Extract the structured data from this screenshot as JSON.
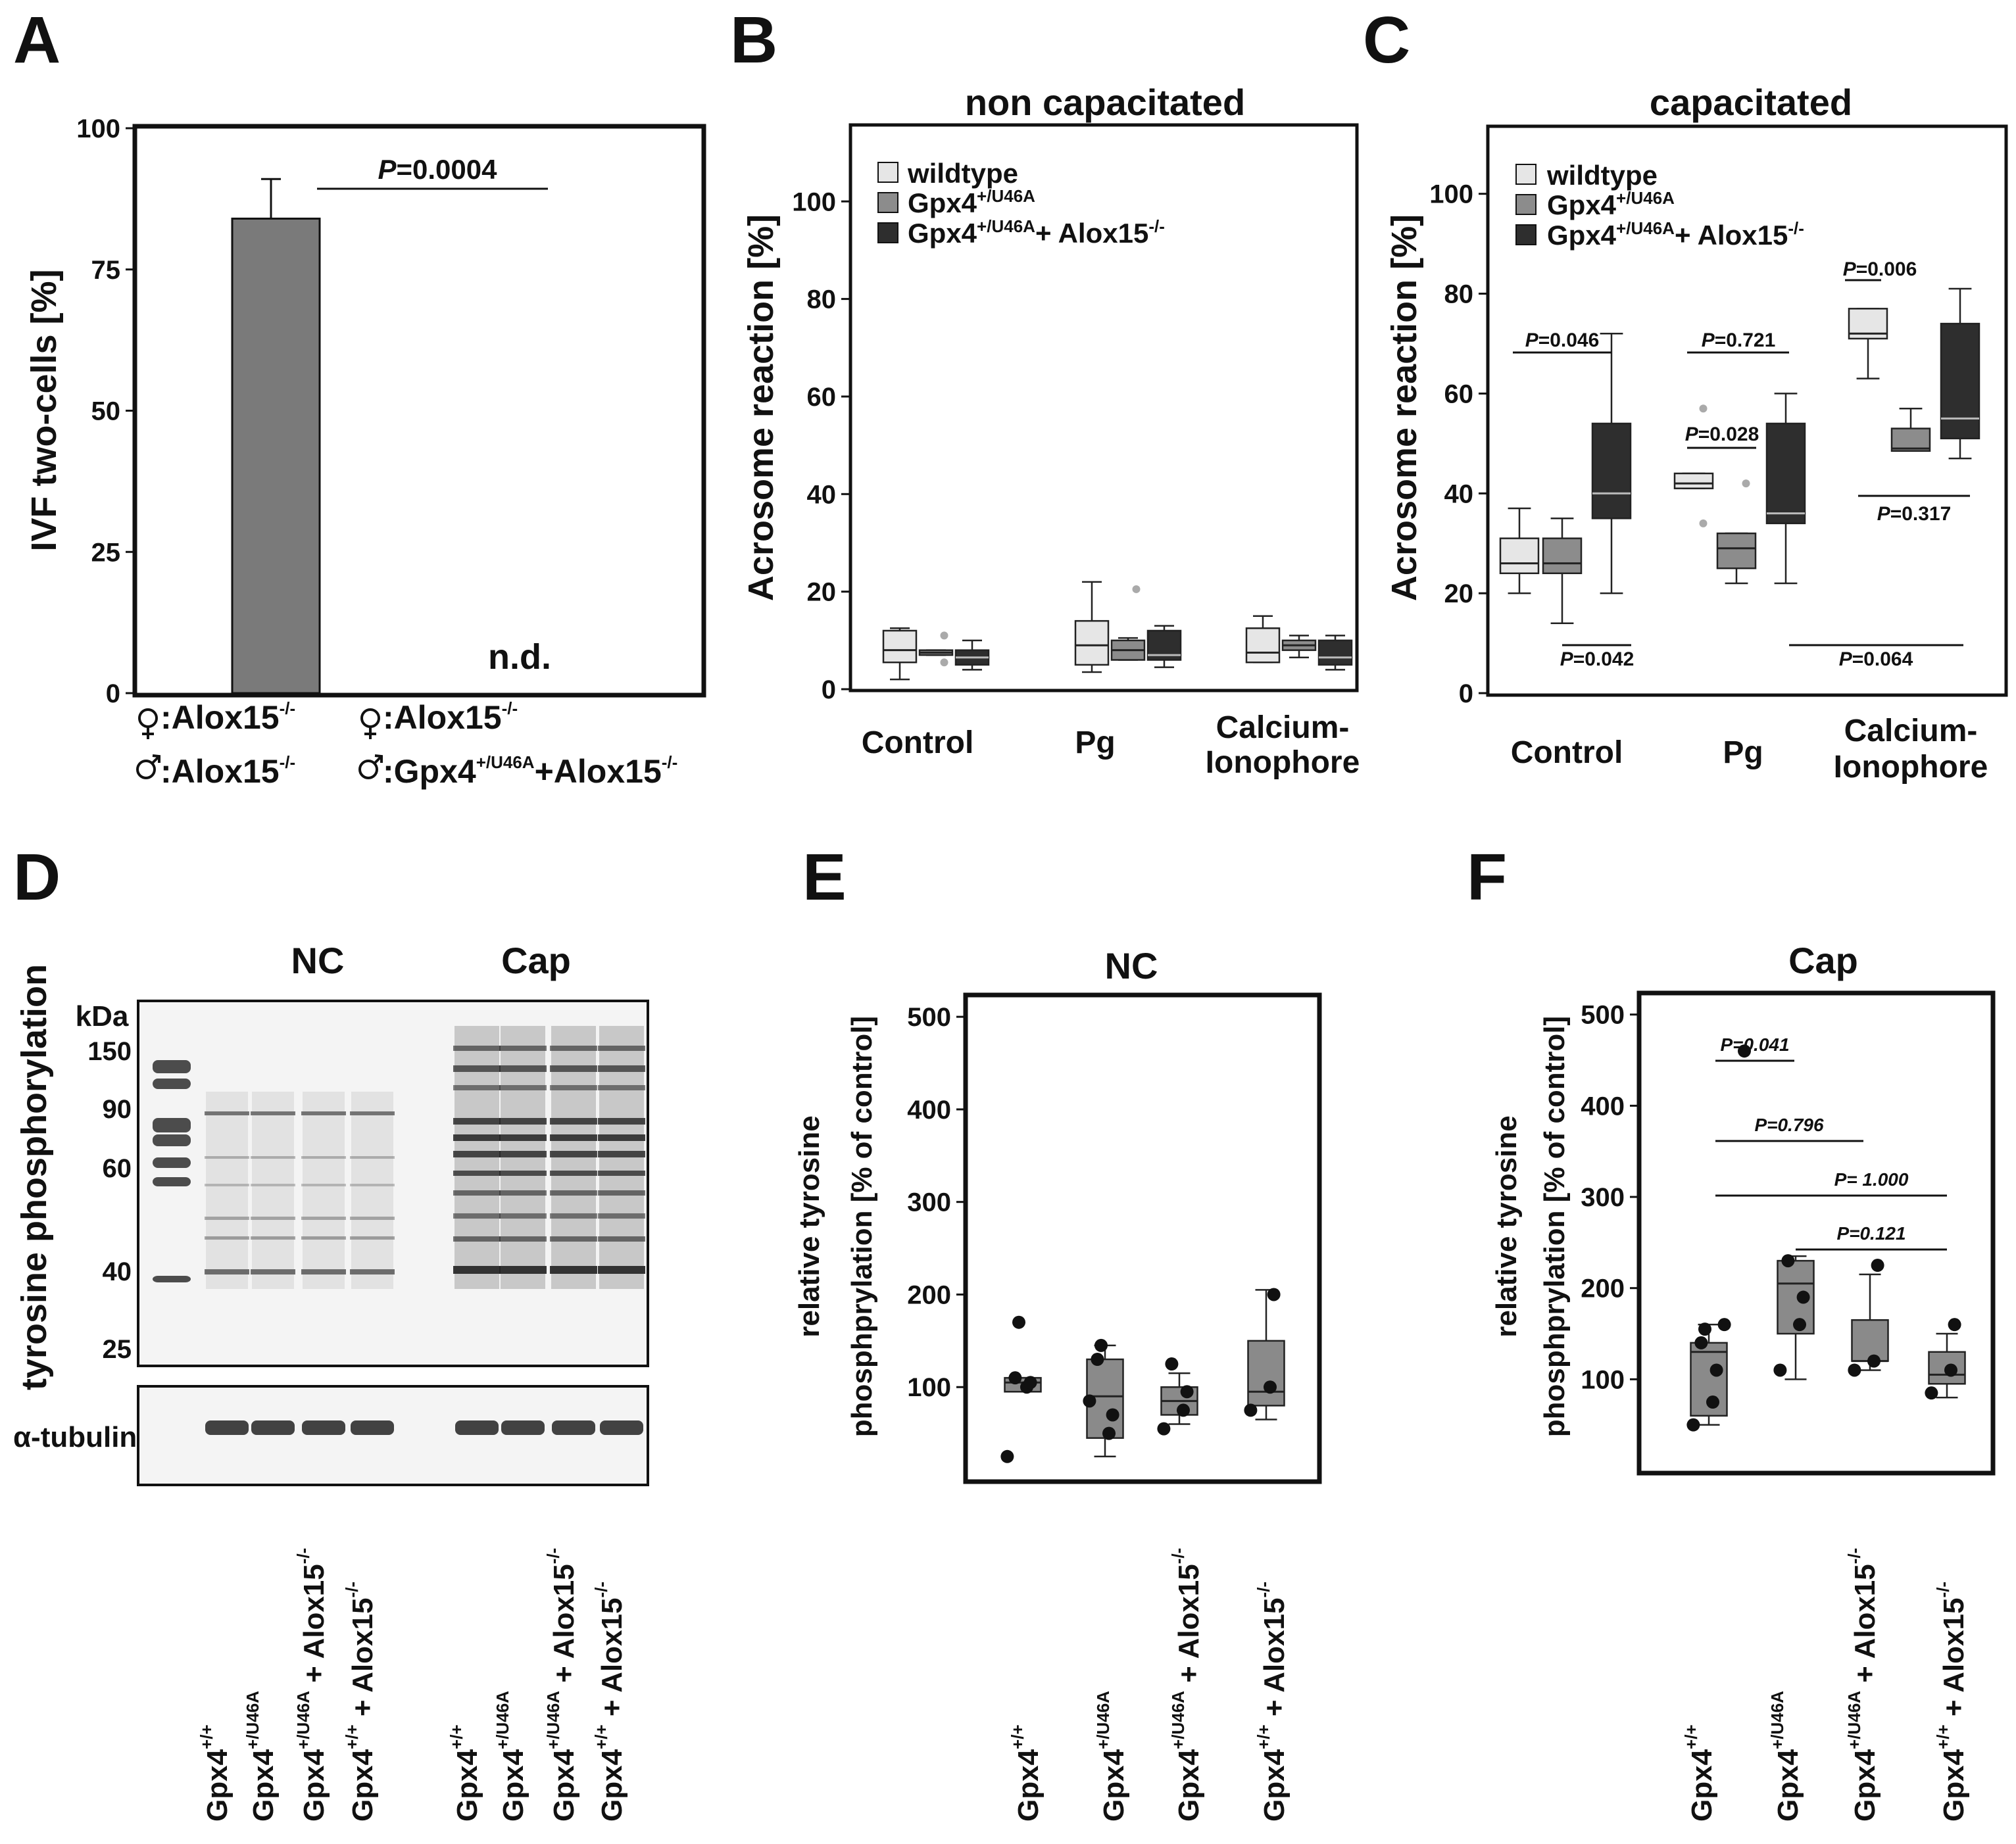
{
  "panels": {
    "A": "A",
    "B": "B",
    "C": "C",
    "D": "D",
    "E": "E",
    "F": "F"
  },
  "colors": {
    "wildtype": "#e6e6e6",
    "gpx4": "#8c8c8c",
    "double": "#2e2e2e",
    "bar": "#7a7a7a",
    "box_single": "#8a8a8a"
  },
  "chart_data": [
    {
      "id": "A",
      "type": "bar",
      "title": "",
      "ylabel": "IVF two-cells [%]",
      "xlabel": "",
      "ylim": [
        0,
        100
      ],
      "yticks": [
        "0",
        "25",
        "50",
        "75",
        "100"
      ],
      "categories": [
        {
          "female": ":Alox15",
          "female_sup": "-/-",
          "male": ":Alox15",
          "male_sup": "-/-"
        },
        {
          "female": ":Alox15",
          "female_sup": "-/-",
          "male": ":Gpx4",
          "male_sup": "+/U46A",
          "male_tail": "+Alox15",
          "male_tail_sup": "-/-"
        }
      ],
      "values": [
        84,
        null
      ],
      "errors": [
        7,
        null
      ],
      "nd_label": "n.d.",
      "p_label": "P",
      "p_value": "=0.0004"
    },
    {
      "id": "B",
      "type": "box",
      "title": "non capacitated",
      "ylabel": "Acrosome reaction [%]",
      "ylim": [
        0,
        115
      ],
      "yticks": [
        "0",
        "20",
        "40",
        "60",
        "80",
        "100"
      ],
      "categories": [
        "Control",
        "Pg",
        "Calcium-",
        "Ionophore"
      ],
      "legend": [
        {
          "label": "wildtype",
          "sup": ""
        },
        {
          "label": "Gpx4",
          "sup": "+/U46A"
        },
        {
          "label": "Gpx4",
          "sup": "+/U46A",
          "tail": "+ Alox15",
          "tail_sup": "-/-"
        }
      ],
      "series": [
        {
          "name": "wildtype",
          "boxes": [
            {
              "group": "Control",
              "min": 2,
              "q1": 5.5,
              "median": 8,
              "q3": 12,
              "max": 12.5
            },
            {
              "group": "Pg",
              "min": 3.5,
              "q1": 5,
              "median": 9,
              "q3": 14,
              "max": 22
            },
            {
              "group": "Calcium-Ionophore",
              "min": 5.5,
              "q1": 5.5,
              "median": 7.5,
              "q3": 12.5,
              "max": 15
            }
          ]
        },
        {
          "name": "Gpx4+/U46A",
          "boxes": [
            {
              "group": "Control",
              "min": 7,
              "q1": 7,
              "median": 7.5,
              "q3": 8,
              "max": 8,
              "outliers": [
                5.5,
                11
              ]
            },
            {
              "group": "Pg",
              "min": 6,
              "q1": 6,
              "median": 8,
              "q3": 10,
              "max": 10.5,
              "outliers": [
                20.5
              ]
            },
            {
              "group": "Calcium-Ionophore",
              "min": 6.5,
              "q1": 8,
              "median": 9,
              "q3": 10,
              "max": 11
            }
          ]
        },
        {
          "name": "Gpx4+/U46A + Alox15-/-",
          "boxes": [
            {
              "group": "Control",
              "min": 4,
              "q1": 5,
              "median": 6.5,
              "q3": 8,
              "max": 10
            },
            {
              "group": "Pg",
              "min": 4.5,
              "q1": 6,
              "median": 7,
              "q3": 12,
              "max": 13
            },
            {
              "group": "Calcium-Ionophore",
              "min": 4,
              "q1": 5,
              "median": 6.5,
              "q3": 10,
              "max": 11
            }
          ]
        }
      ]
    },
    {
      "id": "C",
      "type": "box",
      "title": "capacitated",
      "ylabel": "Acrosome reaction [%]",
      "ylim": [
        0,
        113
      ],
      "yticks": [
        "0",
        "20",
        "40",
        "60",
        "80",
        "100"
      ],
      "categories": [
        "Control",
        "Pg",
        "Calcium-",
        "Ionophore"
      ],
      "legend": [
        {
          "label": "wildtype",
          "sup": ""
        },
        {
          "label": "Gpx4",
          "sup": "+/U46A"
        },
        {
          "label": "Gpx4",
          "sup": "+/U46A",
          "tail": "+ Alox15",
          "tail_sup": "-/-"
        }
      ],
      "series": [
        {
          "name": "wildtype",
          "boxes": [
            {
              "group": "Control",
              "min": 20,
              "q1": 24,
              "median": 26,
              "q3": 31,
              "max": 37
            },
            {
              "group": "Pg",
              "min": 41,
              "q1": 41,
              "median": 42,
              "q3": 44,
              "max": 44,
              "outliers": [
                34,
                57
              ]
            },
            {
              "group": "Calcium-Ionophore",
              "min": 63,
              "q1": 71,
              "median": 72,
              "q3": 77,
              "max": 77
            }
          ]
        },
        {
          "name": "Gpx4+/U46A",
          "boxes": [
            {
              "group": "Control",
              "min": 14,
              "q1": 24,
              "median": 26,
              "q3": 31,
              "max": 35
            },
            {
              "group": "Pg",
              "min": 22,
              "q1": 25,
              "median": 29,
              "q3": 32,
              "max": 32,
              "outliers": [
                42
              ]
            },
            {
              "group": "Calcium-Ionophore",
              "min": 48.5,
              "q1": 48.5,
              "median": 49,
              "q3": 53,
              "max": 57
            }
          ]
        },
        {
          "name": "Gpx4+/U46A + Alox15-/-",
          "boxes": [
            {
              "group": "Control",
              "min": 20,
              "q1": 35,
              "median": 40,
              "q3": 54,
              "max": 72
            },
            {
              "group": "Pg",
              "min": 22,
              "q1": 34,
              "median": 36,
              "q3": 54,
              "max": 60
            },
            {
              "group": "Calcium-Ionophore",
              "min": 47,
              "q1": 51,
              "median": 55,
              "q3": 74,
              "max": 81
            }
          ]
        }
      ],
      "p_values": [
        {
          "p": "P",
          "v": "=0.046"
        },
        {
          "p": "P",
          "v": "=0.042"
        },
        {
          "p": "P",
          "v": "=0.721"
        },
        {
          "p": "P",
          "v": "=0.028"
        },
        {
          "p": "P",
          "v": "=0.006"
        },
        {
          "p": "P",
          "v": "=0.317"
        },
        {
          "p": "P",
          "v": "=0.064"
        }
      ]
    },
    {
      "id": "D",
      "type": "blot",
      "title_nc": "NC",
      "title_cap": "Cap",
      "ylabel": "tyrosine phosphorylation",
      "unit": "kDa",
      "markers": [
        "150",
        "90",
        "60",
        "40",
        "25"
      ],
      "loading_control": "α-tubulin",
      "lanes": [
        {
          "a": "Gpx4",
          "sa": "+/+",
          "b": "",
          "sb": ""
        },
        {
          "a": "Gpx4",
          "sa": "+/U46A",
          "b": "",
          "sb": ""
        },
        {
          "a": "Gpx4",
          "sa": "+/U46A",
          "b": " + Alox15",
          "sb": "-/-"
        },
        {
          "a": "Gpx4",
          "sa": "+/+",
          "b": " + Alox15",
          "sb": "-/-"
        }
      ]
    },
    {
      "id": "E",
      "type": "box",
      "title": "NC",
      "ylabel_1": "relative tyrosine",
      "ylabel_2": "phosphprylation [% of control]",
      "ylim": [
        0,
        520
      ],
      "yticks": [
        "100",
        "200",
        "300",
        "400",
        "500"
      ],
      "categories": [
        {
          "a": "Gpx4",
          "sa": "+/+",
          "b": "",
          "sb": ""
        },
        {
          "a": "Gpx4",
          "sa": "+/U46A",
          "b": "",
          "sb": ""
        },
        {
          "a": "Gpx4",
          "sa": "+/U46A",
          "b": " + Alox15",
          "sb": "-/-"
        },
        {
          "a": "Gpx4",
          "sa": "+/+",
          "b": " + Alox15",
          "sb": "-/-"
        }
      ],
      "boxes": [
        {
          "min": 95,
          "q1": 95,
          "median": 105,
          "q3": 110,
          "max": 110,
          "points": [
            25,
            100,
            105,
            110,
            170
          ]
        },
        {
          "min": 25,
          "q1": 45,
          "median": 90,
          "q3": 130,
          "max": 145,
          "points": [
            85,
            50,
            70,
            130,
            145
          ]
        },
        {
          "min": 60,
          "q1": 70,
          "median": 85,
          "q3": 100,
          "max": 115,
          "points": [
            55,
            75,
            95,
            125
          ]
        },
        {
          "min": 65,
          "q1": 80,
          "median": 95,
          "q3": 150,
          "max": 205,
          "points": [
            75,
            100,
            200
          ]
        }
      ]
    },
    {
      "id": "F",
      "type": "box",
      "title": "Cap",
      "ylabel_1": "relative tyrosine",
      "ylabel_2": "phosphprylation [% of control]",
      "ylim": [
        0,
        520
      ],
      "yticks": [
        "100",
        "200",
        "300",
        "400",
        "500"
      ],
      "categories": [
        {
          "a": "Gpx4",
          "sa": "+/+",
          "b": "",
          "sb": ""
        },
        {
          "a": "Gpx4",
          "sa": "+/U46A",
          "b": "",
          "sb": ""
        },
        {
          "a": "Gpx4",
          "sa": "+/U46A",
          "b": " + Alox15",
          "sb": "-/-"
        },
        {
          "a": "Gpx4",
          "sa": "+/+",
          "b": " + Alox15",
          "sb": "-/-"
        }
      ],
      "boxes": [
        {
          "min": 50,
          "q1": 60,
          "median": 130,
          "q3": 140,
          "max": 160,
          "points": [
            50,
            75,
            110,
            140,
            155,
            160
          ]
        },
        {
          "min": 100,
          "q1": 150,
          "median": 205,
          "q3": 230,
          "max": 235,
          "points": [
            110,
            160,
            190,
            230
          ]
        },
        {
          "min": 110,
          "q1": 120,
          "median": 120,
          "q3": 165,
          "max": 215,
          "points": [
            110,
            120,
            225
          ]
        },
        {
          "min": 80,
          "q1": 95,
          "median": 105,
          "q3": 130,
          "max": 150,
          "points": [
            85,
            110,
            160
          ]
        }
      ],
      "outlier_label_point": 460,
      "p_values": [
        {
          "v": "P=0.041"
        },
        {
          "v": "P=0.796"
        },
        {
          "v": "P= 1.000"
        },
        {
          "v": "P=0.121"
        }
      ]
    }
  ]
}
